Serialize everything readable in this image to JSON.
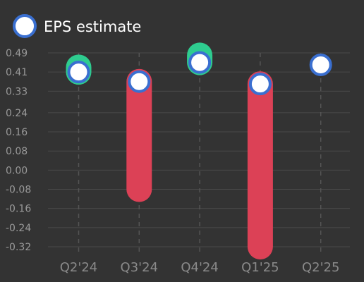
{
  "chart_data": {
    "type": "dumbbell",
    "legend": {
      "label": "EPS estimate",
      "placement": "top-left",
      "marker_fill": "#ffffff",
      "marker_stroke": "#3a6fd0"
    },
    "categories": [
      "Q2'24",
      "Q3'24",
      "Q4'24",
      "Q1'25",
      "Q2'25"
    ],
    "estimate": [
      0.41,
      0.37,
      0.45,
      0.36,
      0.44
    ],
    "actual": [
      0.43,
      -0.08,
      0.48,
      -0.32,
      null
    ],
    "y_ticks": [
      "0.49",
      "0.41",
      "0.33",
      "0.24",
      "0.16",
      "0.08",
      "0.00",
      "-0.08",
      "-0.16",
      "-0.24",
      "-0.32"
    ],
    "ylim": [
      -0.35,
      0.52
    ],
    "grid": true,
    "colors": {
      "beat": "#2ecc8f",
      "miss": "#dc4156",
      "estimate_fill": "#ffffff",
      "estimate_stroke": "#3a6fd0",
      "grid": "#4a4a4a",
      "category_line": "#555555"
    }
  }
}
